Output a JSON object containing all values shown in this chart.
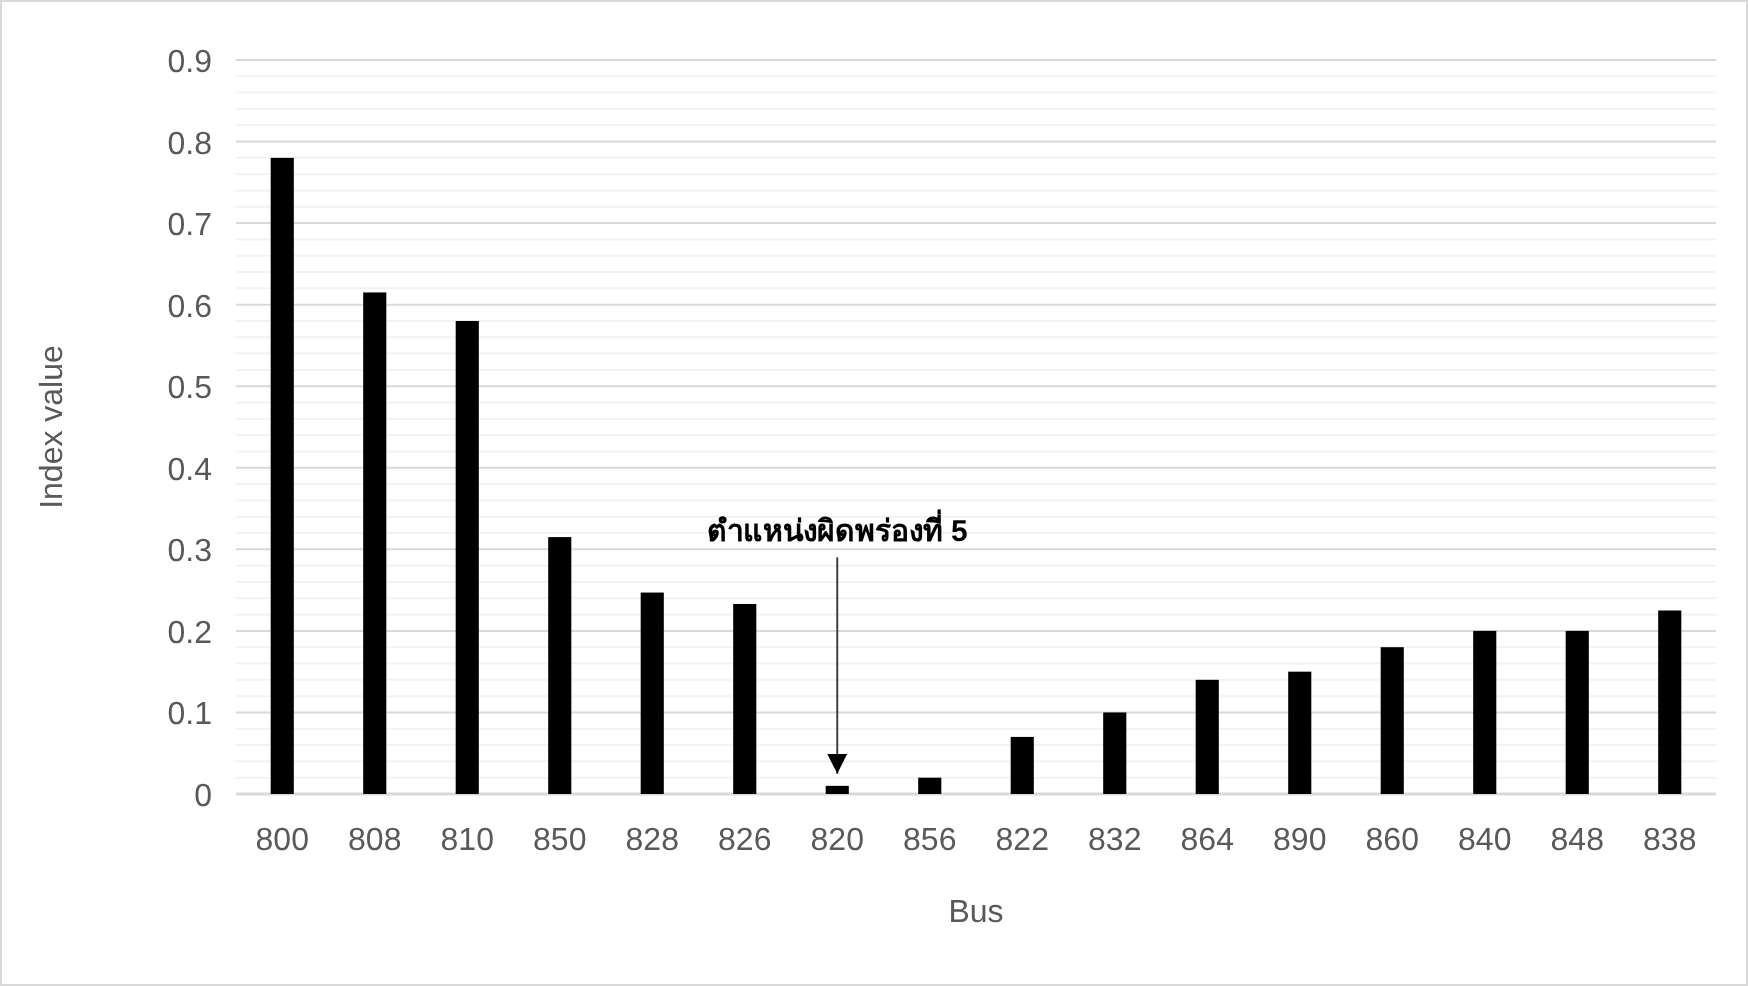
{
  "chart_data": {
    "type": "bar",
    "xlabel": "Bus",
    "ylabel": "Index value",
    "categories": [
      "800",
      "808",
      "810",
      "850",
      "828",
      "826",
      "820",
      "856",
      "822",
      "832",
      "864",
      "890",
      "860",
      "840",
      "848",
      "838"
    ],
    "values": [
      0.78,
      0.615,
      0.58,
      0.315,
      0.247,
      0.233,
      0.01,
      0.02,
      0.07,
      0.1,
      0.14,
      0.15,
      0.18,
      0.2,
      0.2,
      0.225
    ],
    "color": "#000000",
    "ylim": [
      0,
      0.9
    ],
    "yticks": [
      0,
      0.1,
      0.2,
      0.3,
      0.4,
      0.5,
      0.6,
      0.7,
      0.8,
      0.9
    ],
    "grid": "y",
    "annotations": [
      {
        "text": "ตำแหน่งผิดพร่องที่ 5",
        "x": "820",
        "y": 0.01
      }
    ]
  }
}
